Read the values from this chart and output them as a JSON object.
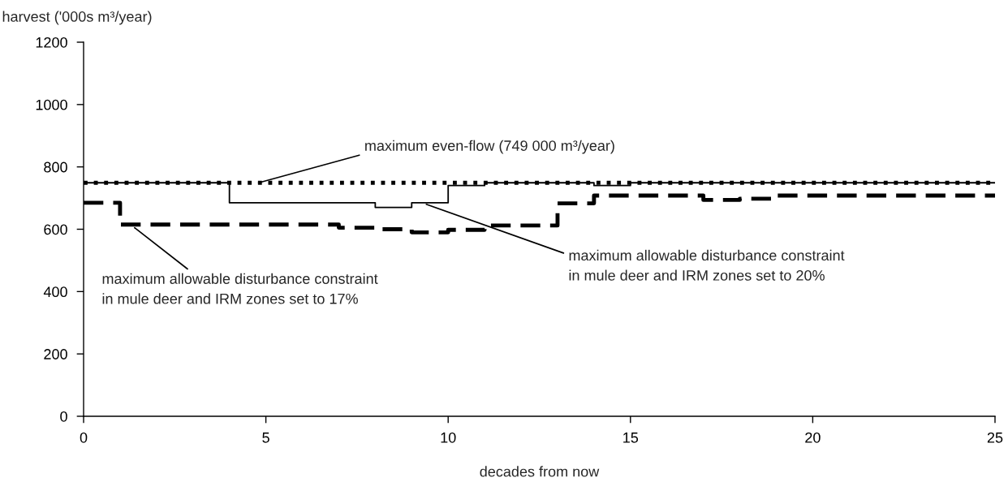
{
  "chart_data": {
    "type": "step",
    "xlabel": "decades from now",
    "ylabel": "harvest ('000s m³/year)",
    "xlim": [
      0,
      25
    ],
    "xticks": [
      0,
      5,
      10,
      15,
      20,
      25
    ],
    "ylim": [
      0,
      1200
    ],
    "yticks": [
      0,
      200,
      400,
      600,
      800,
      1000,
      1200
    ],
    "grid": false,
    "legend": false,
    "series": [
      {
        "color": "#000000",
        "line_style": "solid",
        "x": [
          0,
          4,
          8,
          9,
          10,
          11,
          14,
          15,
          25
        ],
        "values": [
          749,
          685,
          670,
          685,
          740,
          749,
          740,
          749,
          749
        ]
      },
      {
        "color": "#000000",
        "line_style": "dashed",
        "x": [
          0,
          1,
          7,
          8,
          9,
          10,
          11,
          13,
          14,
          17,
          18,
          19,
          25
        ],
        "values": [
          685,
          615,
          605,
          600,
          590,
          598,
          612,
          683,
          708,
          694,
          698,
          708,
          708
        ]
      },
      {
        "color": "#000000",
        "line_style": "dotted",
        "x": [
          0,
          25
        ],
        "values": [
          749,
          749
        ]
      }
    ],
    "annotations": [
      {
        "text": "maximum even-flow (749 000 m³/year)",
        "x": 4.8,
        "y": 749
      },
      {
        "text": "maximum allowable disturbance constraint\nin mule deer and IRM zones set to 17%",
        "x": 1.4,
        "y": 605
      },
      {
        "text": "maximum allowable disturbance constraint\nin mule deer and IRM zones set to 20%",
        "x": 9.4,
        "y": 680
      }
    ]
  }
}
